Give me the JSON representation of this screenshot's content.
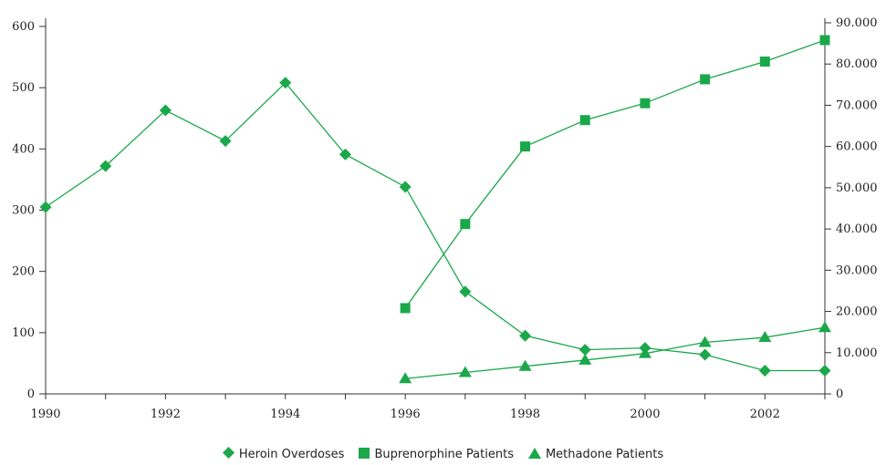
{
  "chart_data": {
    "type": "line",
    "title": "",
    "xlabel": "",
    "ylabel": "",
    "y2label": "",
    "x_ticks": [
      "1990",
      "1992",
      "1994",
      "1996",
      "1998",
      "2000",
      "2002"
    ],
    "y_ticks": [
      "0",
      "100",
      "200",
      "300",
      "400",
      "500",
      "600"
    ],
    "y2_ticks": [
      "0",
      "10.000",
      "20.000",
      "30.000",
      "40.000",
      "50.000",
      "60.000",
      "70.000",
      "80.000",
      "90.000"
    ],
    "xlim": [
      1990,
      2003
    ],
    "ylim": [
      0,
      600
    ],
    "y2lim": [
      0,
      90000
    ],
    "grid": false,
    "legend_position": "bottom",
    "color": "#1aa84a",
    "series": [
      {
        "name": "Heroin Overdoses",
        "axis": "left",
        "marker": "diamond",
        "x": [
          1990,
          1991,
          1992,
          1993,
          1994,
          1995,
          1996,
          1997,
          1998,
          1999,
          2000,
          2001,
          2002,
          2003
        ],
        "values": [
          305,
          372,
          463,
          413,
          508,
          391,
          338,
          167,
          95,
          72,
          75,
          64,
          38,
          38
        ]
      },
      {
        "name": "Buprenorphine Patients",
        "axis": "right",
        "marker": "square",
        "x": [
          1996,
          1997,
          1998,
          1999,
          2000,
          2001,
          2002,
          2003
        ],
        "values": [
          20800,
          41200,
          60000,
          66400,
          70500,
          76300,
          80600,
          85800
        ]
      },
      {
        "name": "Methadone Patients",
        "axis": "right",
        "marker": "triangle",
        "x": [
          1996,
          1997,
          1998,
          1999,
          2000,
          2001,
          2002,
          2003
        ],
        "values": [
          3700,
          5200,
          6700,
          8200,
          9800,
          12500,
          13700,
          16100
        ]
      }
    ]
  }
}
